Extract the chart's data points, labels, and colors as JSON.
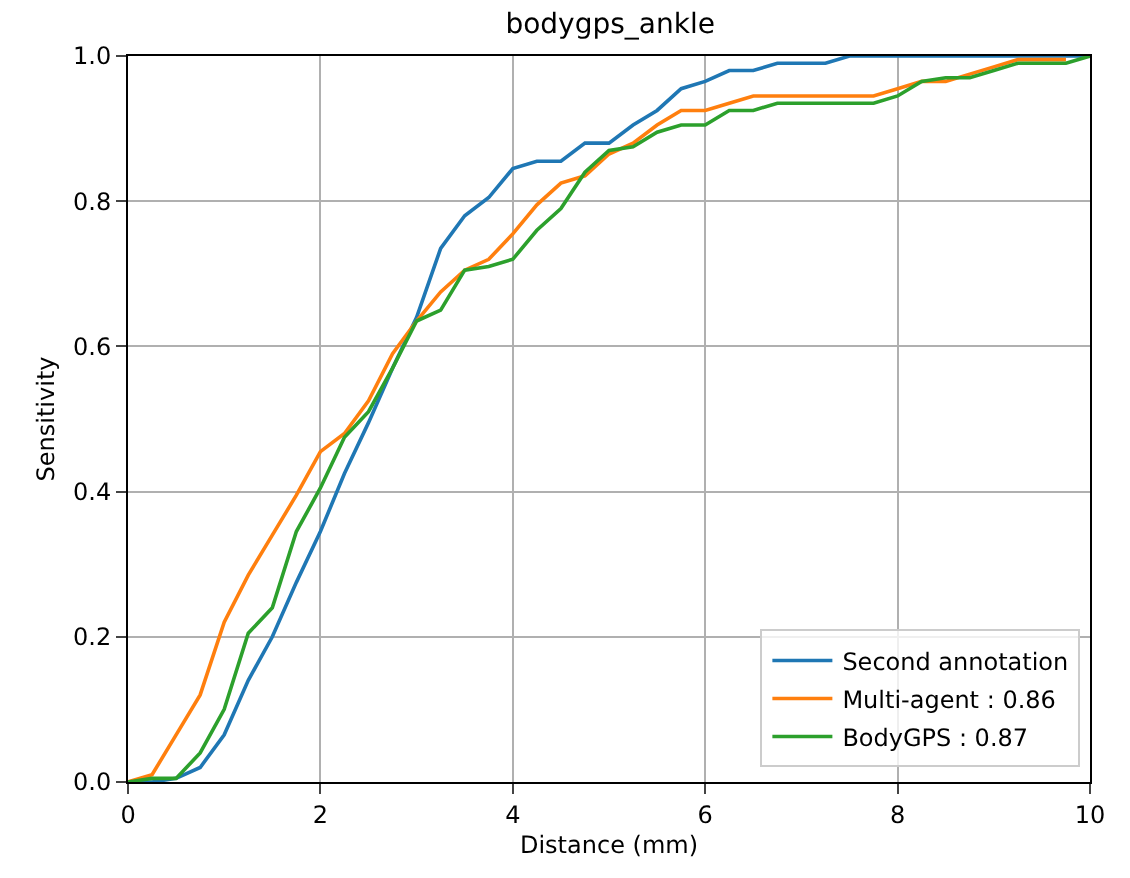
{
  "chart_data": {
    "type": "line",
    "title": "bodygps_ankle",
    "xlabel": "Distance (mm)",
    "ylabel": "Sensitivity",
    "x": [
      0,
      0.25,
      0.5,
      0.75,
      1,
      1.25,
      1.5,
      1.75,
      2,
      2.25,
      2.5,
      2.75,
      3,
      3.25,
      3.5,
      3.75,
      4,
      4.25,
      4.5,
      4.75,
      5,
      5.25,
      5.5,
      5.75,
      6,
      6.25,
      6.5,
      6.75,
      7,
      7.25,
      7.5,
      7.75,
      8,
      8.25,
      8.5,
      8.75,
      9,
      9.25,
      9.5,
      9.75,
      10
    ],
    "series": [
      {
        "name": "Second annotation",
        "color": "#1f77b4",
        "values": [
          0,
          0,
          0.005,
          0.02,
          0.065,
          0.14,
          0.2,
          0.275,
          0.345,
          0.425,
          0.495,
          0.57,
          0.64,
          0.735,
          0.78,
          0.805,
          0.845,
          0.855,
          0.855,
          0.88,
          0.88,
          0.905,
          0.925,
          0.955,
          0.965,
          0.98,
          0.98,
          0.99,
          0.99,
          0.99,
          1,
          1,
          1,
          1,
          1,
          1,
          1,
          1,
          1,
          1,
          1
        ]
      },
      {
        "name": "Multi-agent : 0.86",
        "color": "#ff7f0e",
        "values": [
          0,
          0.01,
          0.065,
          0.12,
          0.22,
          0.285,
          0.34,
          0.395,
          0.455,
          0.48,
          0.525,
          0.59,
          0.635,
          0.675,
          0.705,
          0.72,
          0.755,
          0.795,
          0.825,
          0.835,
          0.865,
          0.88,
          0.905,
          0.925,
          0.925,
          0.935,
          0.945,
          0.945,
          0.945,
          0.945,
          0.945,
          0.945,
          0.955,
          0.965,
          0.965,
          0.975,
          0.985,
          0.995,
          0.995,
          0.995,
          null
        ]
      },
      {
        "name": "BodyGPS : 0.87",
        "color": "#2ca02c",
        "values": [
          0,
          0.005,
          0.005,
          0.04,
          0.1,
          0.205,
          0.24,
          0.345,
          0.405,
          0.475,
          0.51,
          0.57,
          0.635,
          0.65,
          0.705,
          0.71,
          0.72,
          0.76,
          0.79,
          0.84,
          0.87,
          0.875,
          0.895,
          0.905,
          0.905,
          0.925,
          0.925,
          0.935,
          0.935,
          0.935,
          0.935,
          0.935,
          0.945,
          0.965,
          0.97,
          0.97,
          0.98,
          0.99,
          0.99,
          0.99,
          1
        ]
      }
    ],
    "xlim": [
      0,
      10
    ],
    "xticks": [
      0,
      2,
      4,
      6,
      8,
      10
    ],
    "ylim": [
      0,
      1
    ],
    "yticks": [
      {
        "value": 0,
        "label": "0.0"
      },
      {
        "value": 0.2,
        "label": "0.2"
      },
      {
        "value": 0.4,
        "label": "0.4"
      },
      {
        "value": 0.6,
        "label": "0.6"
      },
      {
        "value": 0.8,
        "label": "0.8"
      },
      {
        "value": 1,
        "label": "1.0"
      }
    ],
    "grid": true,
    "legend": "bottom right",
    "marker": "none",
    "line_style": "solid"
  }
}
